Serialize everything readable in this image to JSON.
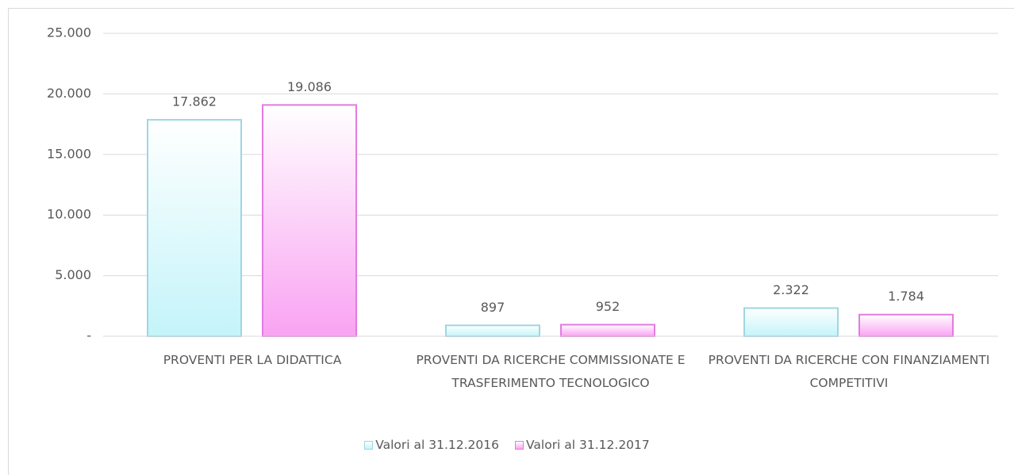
{
  "chart_data": {
    "type": "bar",
    "categories": [
      "PROVENTI PER LA DIDATTICA",
      "PROVENTI DA RICERCHE COMMISSIONATE E TRASFERIMENTO TECNOLOGICO",
      "PROVENTI DA RICERCHE CON FINANZIAMENTI COMPETITIVI"
    ],
    "series": [
      {
        "name": "Valori al 31.12.2016",
        "color": "#c4f4f9",
        "values": [
          17862,
          897,
          2322
        ],
        "value_labels": [
          "17.862",
          "897",
          "2.322"
        ]
      },
      {
        "name": "Valori al 31.12.2017",
        "color": "#f9a3f2",
        "values": [
          19086,
          952,
          1784
        ],
        "value_labels": [
          "19.086",
          "952",
          "1.784"
        ]
      }
    ],
    "ylim": [
      0,
      25000
    ],
    "yticks": [
      {
        "value": 0,
        "label": "-"
      },
      {
        "value": 5000,
        "label": "5.000"
      },
      {
        "value": 10000,
        "label": "10.000"
      },
      {
        "value": 15000,
        "label": "15.000"
      },
      {
        "value": 20000,
        "label": "20.000"
      },
      {
        "value": 25000,
        "label": "25.000"
      }
    ],
    "grid": true,
    "legend": "bottom"
  }
}
